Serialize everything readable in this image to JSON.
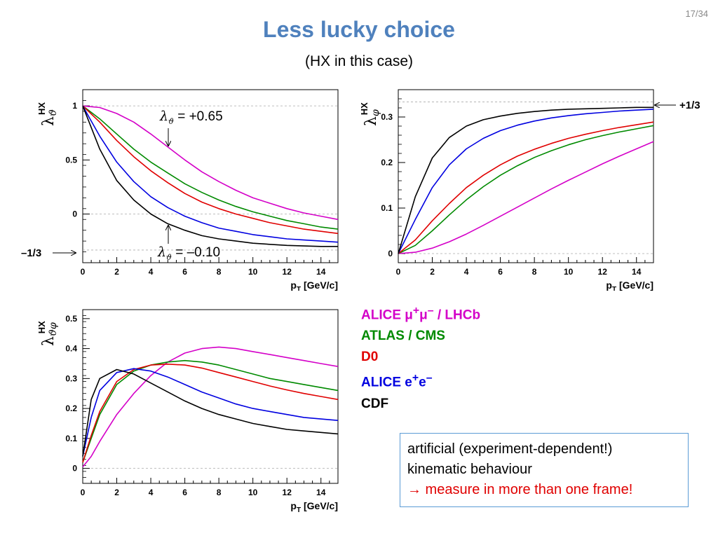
{
  "page_number": "17/34",
  "title": "Less lucky choice",
  "subtitle": "(HX in this case)",
  "legend": [
    {
      "text_a": "ALICE μ",
      "sup1": "+",
      "mid": "μ",
      "sup2": "–",
      "text_b": " / LHCb",
      "color": "#d400c8"
    },
    {
      "text_a": "ATLAS / CMS",
      "color": "#008a00"
    },
    {
      "text_a": "D0",
      "color": "#e00000"
    },
    {
      "text_a": "ALICE e",
      "sup1": "+",
      "mid": "e",
      "sup2": "–",
      "color": "#0000e0"
    },
    {
      "text_a": "CDF",
      "color": "#000000"
    }
  ],
  "note": {
    "line1": "artificial (experiment-dependent!)",
    "line2": "kinematic behaviour",
    "arrow": "→",
    "line3": " measure in more than one frame!"
  },
  "annotations": {
    "upper_label": "λ",
    "upper_sub": "ϑ",
    "upper_value": " = +0.65",
    "lower_label": "λ",
    "lower_sub": "ϑ",
    "lower_value": " = –0.10",
    "left_marker": "–1/3",
    "right_marker": "+1/3"
  },
  "chart_data": [
    {
      "type": "line",
      "xlabel": "p_T [GeV/c]",
      "ylabel": "λ_ϑ^HX",
      "xlim": [
        0,
        15
      ],
      "ylim": [
        -0.45,
        1.15
      ],
      "x_ticks": [
        0,
        2,
        4,
        6,
        8,
        10,
        12,
        14
      ],
      "y_ticks": [
        0,
        0.5,
        1
      ],
      "y_tick_labels": [
        "0",
        "0.5",
        "1"
      ],
      "ref_lines": [
        1,
        0,
        -0.333
      ],
      "series": [
        {
          "color": "#d400c8",
          "x": [
            0,
            1,
            2,
            3,
            4,
            5,
            6,
            7,
            8,
            9,
            10,
            11,
            12,
            13,
            14,
            15
          ],
          "y": [
            1.0,
            0.985,
            0.93,
            0.85,
            0.74,
            0.62,
            0.5,
            0.39,
            0.3,
            0.22,
            0.15,
            0.1,
            0.05,
            0.01,
            -0.02,
            -0.05
          ]
        },
        {
          "color": "#008a00",
          "x": [
            0,
            1,
            2,
            3,
            4,
            5,
            6,
            7,
            8,
            9,
            10,
            11,
            12,
            13,
            14,
            15
          ],
          "y": [
            1.0,
            0.88,
            0.74,
            0.6,
            0.48,
            0.38,
            0.28,
            0.2,
            0.13,
            0.07,
            0.02,
            -0.02,
            -0.06,
            -0.09,
            -0.12,
            -0.14
          ]
        },
        {
          "color": "#e00000",
          "x": [
            0,
            1,
            2,
            3,
            4,
            5,
            6,
            7,
            8,
            9,
            10,
            11,
            12,
            13,
            14,
            15
          ],
          "y": [
            1.0,
            0.85,
            0.68,
            0.53,
            0.4,
            0.29,
            0.19,
            0.11,
            0.05,
            0.0,
            -0.04,
            -0.08,
            -0.11,
            -0.14,
            -0.16,
            -0.18
          ]
        },
        {
          "color": "#0000e0",
          "x": [
            0,
            1,
            2,
            3,
            4,
            5,
            6,
            7,
            8,
            9,
            10,
            11,
            12,
            13,
            14,
            15
          ],
          "y": [
            1.0,
            0.72,
            0.48,
            0.3,
            0.16,
            0.06,
            -0.02,
            -0.08,
            -0.13,
            -0.16,
            -0.19,
            -0.21,
            -0.23,
            -0.24,
            -0.25,
            -0.26
          ]
        },
        {
          "color": "#000000",
          "x": [
            0,
            1,
            2,
            3,
            4,
            5,
            6,
            7,
            8,
            9,
            10,
            11,
            12,
            13,
            14,
            15
          ],
          "y": [
            1.0,
            0.6,
            0.31,
            0.13,
            0.0,
            -0.09,
            -0.15,
            -0.2,
            -0.23,
            -0.25,
            -0.27,
            -0.28,
            -0.29,
            -0.295,
            -0.3,
            -0.3
          ]
        }
      ]
    },
    {
      "type": "line",
      "xlabel": "p_T [GeV/c]",
      "ylabel": "λ_φ^HX",
      "xlim": [
        0,
        15
      ],
      "ylim": [
        -0.02,
        0.36
      ],
      "x_ticks": [
        0,
        2,
        4,
        6,
        8,
        10,
        12,
        14
      ],
      "y_ticks": [
        0,
        0.1,
        0.2,
        0.3
      ],
      "y_tick_labels": [
        "0",
        "0.1",
        "0.2",
        "0.3"
      ],
      "ref_lines": [
        0.333,
        0
      ],
      "series": [
        {
          "color": "#d400c8",
          "x": [
            0,
            1,
            2,
            3,
            4,
            5,
            6,
            7,
            8,
            9,
            10,
            11,
            12,
            13,
            14,
            15
          ],
          "y": [
            0,
            0.003,
            0.012,
            0.026,
            0.043,
            0.062,
            0.082,
            0.102,
            0.122,
            0.142,
            0.161,
            0.179,
            0.197,
            0.214,
            0.23,
            0.246
          ]
        },
        {
          "color": "#008a00",
          "x": [
            0,
            1,
            2,
            3,
            4,
            5,
            6,
            7,
            8,
            9,
            10,
            11,
            12,
            13,
            14,
            15
          ],
          "y": [
            0,
            0.018,
            0.05,
            0.085,
            0.118,
            0.147,
            0.172,
            0.193,
            0.211,
            0.226,
            0.239,
            0.25,
            0.259,
            0.267,
            0.274,
            0.281
          ]
        },
        {
          "color": "#e00000",
          "x": [
            0,
            1,
            2,
            3,
            4,
            5,
            6,
            7,
            8,
            9,
            10,
            11,
            12,
            13,
            14,
            15
          ],
          "y": [
            0,
            0.03,
            0.072,
            0.11,
            0.145,
            0.172,
            0.195,
            0.214,
            0.229,
            0.242,
            0.253,
            0.262,
            0.27,
            0.277,
            0.283,
            0.289
          ]
        },
        {
          "color": "#0000e0",
          "x": [
            0,
            1,
            2,
            3,
            4,
            5,
            6,
            7,
            8,
            9,
            10,
            11,
            12,
            13,
            14,
            15
          ],
          "y": [
            0,
            0.075,
            0.145,
            0.195,
            0.23,
            0.253,
            0.27,
            0.282,
            0.291,
            0.298,
            0.303,
            0.307,
            0.31,
            0.313,
            0.315,
            0.317
          ]
        },
        {
          "color": "#000000",
          "x": [
            0,
            1,
            2,
            3,
            4,
            5,
            6,
            7,
            8,
            9,
            10,
            11,
            12,
            13,
            14,
            15
          ],
          "y": [
            0,
            0.125,
            0.21,
            0.255,
            0.28,
            0.294,
            0.302,
            0.308,
            0.312,
            0.315,
            0.317,
            0.318,
            0.319,
            0.32,
            0.321,
            0.321
          ]
        }
      ]
    },
    {
      "type": "line",
      "xlabel": "p_T [GeV/c]",
      "ylabel": "λ_ϑφ^HX",
      "xlim": [
        0,
        15
      ],
      "ylim": [
        -0.05,
        0.53
      ],
      "x_ticks": [
        0,
        2,
        4,
        6,
        8,
        10,
        12,
        14
      ],
      "y_ticks": [
        0,
        0.1,
        0.2,
        0.3,
        0.4,
        0.5
      ],
      "y_tick_labels": [
        "0",
        "0.1",
        "0.2",
        "0.3",
        "0.4",
        "0.5"
      ],
      "ref_lines": [
        0
      ],
      "series": [
        {
          "color": "#d400c8",
          "x": [
            0,
            0.5,
            1,
            2,
            3,
            4,
            5,
            6,
            7,
            8,
            9,
            10,
            11,
            12,
            13,
            14,
            15
          ],
          "y": [
            0.005,
            0.04,
            0.09,
            0.18,
            0.25,
            0.31,
            0.355,
            0.385,
            0.4,
            0.405,
            0.4,
            0.39,
            0.38,
            0.37,
            0.36,
            0.35,
            0.34
          ]
        },
        {
          "color": "#008a00",
          "x": [
            0,
            0.5,
            1,
            2,
            3,
            4,
            5,
            6,
            7,
            8,
            9,
            10,
            11,
            12,
            13,
            14,
            15
          ],
          "y": [
            0.02,
            0.1,
            0.18,
            0.28,
            0.325,
            0.345,
            0.355,
            0.36,
            0.355,
            0.345,
            0.33,
            0.315,
            0.3,
            0.29,
            0.28,
            0.27,
            0.26
          ]
        },
        {
          "color": "#e00000",
          "x": [
            0,
            0.5,
            1,
            2,
            3,
            4,
            5,
            6,
            7,
            8,
            9,
            10,
            11,
            12,
            13,
            14,
            15
          ],
          "y": [
            0.02,
            0.11,
            0.19,
            0.29,
            0.33,
            0.345,
            0.348,
            0.345,
            0.335,
            0.32,
            0.305,
            0.29,
            0.275,
            0.262,
            0.25,
            0.24,
            0.23
          ]
        },
        {
          "color": "#0000e0",
          "x": [
            0,
            0.5,
            1,
            2,
            3,
            4,
            5,
            6,
            7,
            8,
            9,
            10,
            11,
            12,
            13,
            14,
            15
          ],
          "y": [
            0.04,
            0.17,
            0.26,
            0.32,
            0.333,
            0.325,
            0.305,
            0.28,
            0.255,
            0.235,
            0.215,
            0.2,
            0.19,
            0.18,
            0.17,
            0.165,
            0.16
          ]
        },
        {
          "color": "#000000",
          "x": [
            0,
            0.5,
            1,
            2,
            3,
            4,
            5,
            6,
            7,
            8,
            9,
            10,
            11,
            12,
            13,
            14,
            15
          ],
          "y": [
            0.04,
            0.23,
            0.3,
            0.33,
            0.315,
            0.285,
            0.255,
            0.225,
            0.2,
            0.18,
            0.165,
            0.15,
            0.14,
            0.13,
            0.125,
            0.12,
            0.115
          ]
        }
      ]
    }
  ]
}
